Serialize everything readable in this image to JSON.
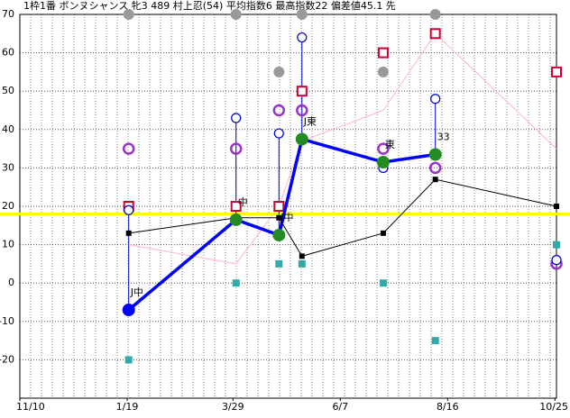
{
  "chart_data": {
    "type": "line",
    "title": "1枠1番 ボンヌシャンス 牝3 489 村上忍(54) 平均指数6 最高指数22 偏差値45.1 先",
    "x": [
      71,
      141,
      169,
      184,
      237,
      271,
      350
    ],
    "xlim": [
      0,
      350
    ],
    "xticks": [
      {
        "value": 0,
        "label": "11/10"
      },
      {
        "value": 70,
        "label": "1/19"
      },
      {
        "value": 139,
        "label": "3/29"
      },
      {
        "value": 209,
        "label": "6/7"
      },
      {
        "value": 279,
        "label": "8/16"
      },
      {
        "value": 349,
        "label": "10/25"
      }
    ],
    "ylim": [
      -30,
      70
    ],
    "yticks": [
      -20,
      -10,
      0,
      10,
      20,
      30,
      40,
      50,
      60,
      70
    ],
    "grid": true,
    "reference_line": {
      "value": 18,
      "color": "#ffff00"
    },
    "series": [
      {
        "style": "thin-line",
        "color": "#ffb6c1",
        "values": [
          10,
          5,
          20,
          37,
          45,
          65,
          35
        ]
      },
      {
        "style": "line-square",
        "color": "#000000",
        "values": [
          13,
          17,
          17,
          7,
          13,
          27,
          20
        ]
      },
      {
        "style": "dot",
        "color": "#999999",
        "values": [
          70,
          70,
          55,
          70,
          55,
          70,
          null
        ]
      },
      {
        "style": "open-square",
        "color": "#cc0033",
        "values": [
          20,
          20,
          20,
          50,
          60,
          65,
          55
        ]
      },
      {
        "style": "open-circle",
        "color": "#9933cc",
        "values": [
          35,
          35,
          45,
          45,
          35,
          30,
          5
        ]
      },
      {
        "style": "ring",
        "color": "#0000cc",
        "values": [
          19,
          43,
          39,
          64,
          30,
          48,
          6
        ]
      },
      {
        "style": "square",
        "color": "#33aaaa",
        "values": [
          -20,
          0,
          5,
          5,
          0,
          -15,
          10
        ]
      },
      {
        "style": "index",
        "color": "#0000ff",
        "values": [
          -7,
          16.5,
          12.5,
          37.5,
          31.5,
          33.5,
          null
        ],
        "marker_colors": [
          "#0000ff",
          "#228b22",
          "#228b22",
          "#228b22",
          "#228b22",
          "#228b22",
          null
        ],
        "point_labels": [
          "J中",
          "中",
          "J中",
          "J東",
          "東",
          "33",
          null
        ]
      }
    ]
  }
}
